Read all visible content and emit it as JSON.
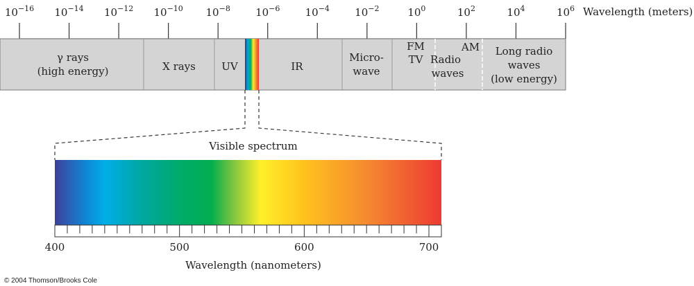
{
  "top_scale": {
    "exponent_base": "10",
    "exponents": [
      "−16",
      "−14",
      "−12",
      "−10",
      "−8",
      "−6",
      "−4",
      "−2",
      "0",
      "2",
      "4",
      "6"
    ],
    "unit_label": "Wavelength (meters)"
  },
  "bands": {
    "gamma_line1": "γ rays",
    "gamma_line2": "(high energy)",
    "xrays": "X rays",
    "uv": "UV",
    "ir": "IR",
    "microwave_line1": "Micro-",
    "microwave_line2": "wave",
    "fm": "FM",
    "tv": "TV",
    "radio_line1": "Radio",
    "radio_line2": "waves",
    "am": "AM",
    "longradio_line1": "Long radio",
    "longradio_line2": "waves",
    "longradio_line3": "(low energy)"
  },
  "visible": {
    "title": "Visible spectrum",
    "min_nm": 400,
    "max_nm": 710,
    "tick_step_nm": 10,
    "tick_labels": [
      400,
      500,
      600,
      700
    ],
    "axis_label": "Wavelength (nanometers)",
    "gradient_stops": [
      {
        "nm": 400,
        "color": "#3a3f96"
      },
      {
        "nm": 410,
        "color": "#2d5db5"
      },
      {
        "nm": 425,
        "color": "#0e86d4"
      },
      {
        "nm": 440,
        "color": "#00aee8"
      },
      {
        "nm": 470,
        "color": "#00a7a0"
      },
      {
        "nm": 500,
        "color": "#00ab6a"
      },
      {
        "nm": 525,
        "color": "#00ad4f"
      },
      {
        "nm": 545,
        "color": "#8bc83e"
      },
      {
        "nm": 565,
        "color": "#fff02a"
      },
      {
        "nm": 600,
        "color": "#ffc21d"
      },
      {
        "nm": 650,
        "color": "#f58a30"
      },
      {
        "nm": 710,
        "color": "#ee3a33"
      }
    ]
  },
  "colors": {
    "band_fill": "#d4d4d4",
    "band_stroke": "#7a7a7a",
    "divider_light": "#ffffff"
  },
  "copyright": "© 2004 Thomson/Brooks Cole"
}
